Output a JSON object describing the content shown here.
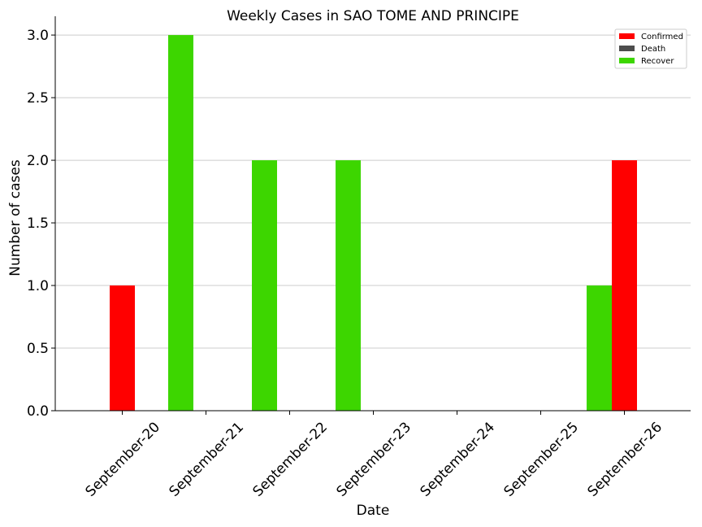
{
  "chart_data": {
    "type": "bar",
    "title": "Weekly Cases in SAO TOME AND PRINCIPE",
    "xlabel": "Date",
    "ylabel": "Number of cases",
    "categories": [
      "September-20",
      "September-21",
      "September-22",
      "September-23",
      "September-24",
      "September-25",
      "September-26"
    ],
    "series": [
      {
        "name": "Confirmed",
        "color": "#ff0000",
        "values": [
          1,
          0,
          0,
          0,
          0,
          0,
          2
        ]
      },
      {
        "name": "Death",
        "color": "#4d4d4d",
        "values": [
          0,
          0,
          0,
          0,
          0,
          0,
          0
        ]
      },
      {
        "name": "Recover",
        "color": "#3dd600",
        "values": [
          0,
          3,
          2,
          2,
          0,
          0,
          1
        ]
      }
    ],
    "ylim": [
      0,
      3.15
    ],
    "yticks": [
      "0.0",
      "0.5",
      "1.0",
      "1.5",
      "2.0",
      "2.5",
      "3.0"
    ],
    "grid": "horizontal",
    "legend_position": "top-right"
  }
}
